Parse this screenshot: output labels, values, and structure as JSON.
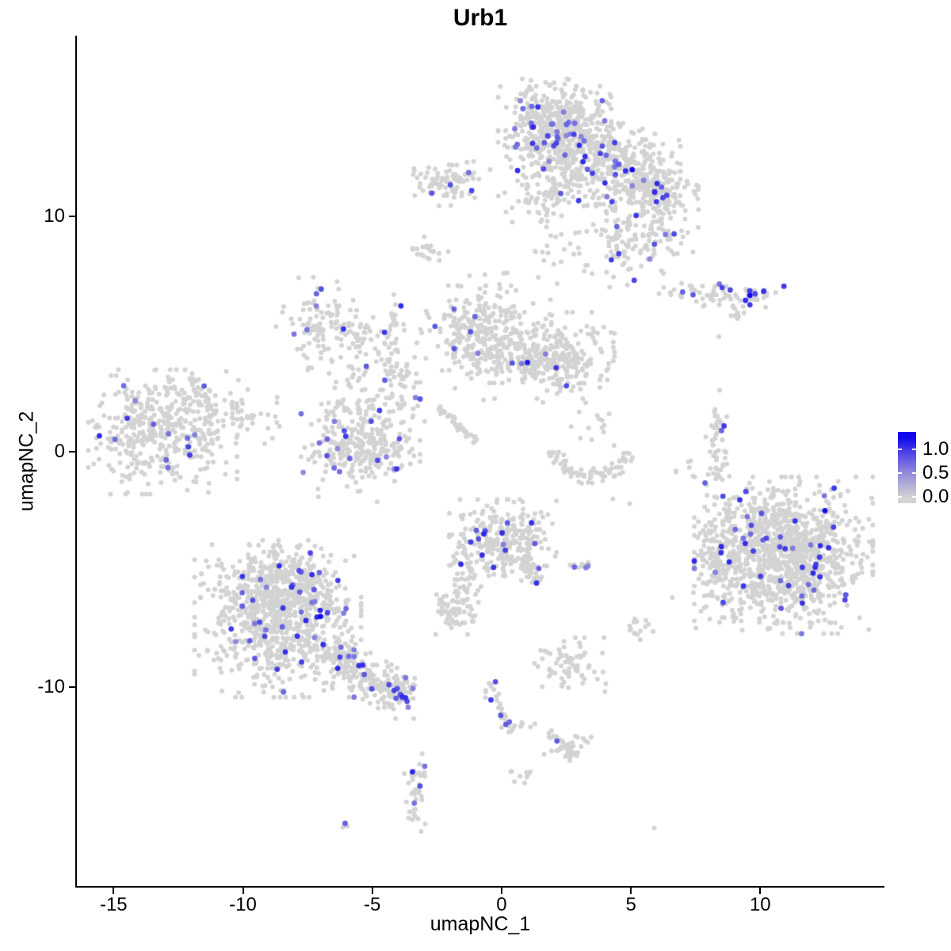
{
  "title": "Urb1",
  "axes": {
    "x": {
      "label": "umapNC_1",
      "ticks": [
        {
          "label": "-15",
          "value": -15
        },
        {
          "label": "-10",
          "value": -10
        },
        {
          "label": "-5",
          "value": -5
        },
        {
          "label": "0",
          "value": 0
        },
        {
          "label": "5",
          "value": 5
        },
        {
          "label": "10",
          "value": 10
        }
      ]
    },
    "y": {
      "label": "umapNC_2",
      "ticks": [
        {
          "label": "10",
          "value": 10
        },
        {
          "label": "0",
          "value": 0
        },
        {
          "label": "-10",
          "value": -10
        }
      ]
    }
  },
  "legend": {
    "labels": [
      {
        "text": "1.0",
        "value": 1.0
      },
      {
        "text": "0.5",
        "value": 0.5
      },
      {
        "text": "0.0",
        "value": 0.0
      }
    ],
    "low_color": "#D3D3D3",
    "high_color": "#1008EB"
  },
  "colors": {
    "base_point": "#D3D3D3",
    "high_point": "#1008EB",
    "axis": "#000000",
    "background": "#ffffff"
  },
  "seed": 20240611,
  "chart_data": {
    "type": "scatter",
    "title": "Urb1",
    "xlabel": "umapNC_1",
    "ylabel": "umapNC_2",
    "xlim": [
      -16.45,
      14.8
    ],
    "ylim": [
      -18.5,
      17.7
    ],
    "grid": false,
    "legend_position": "right",
    "point_radius_gray": 3.0,
    "point_radius_colored": 3.4,
    "clusters": [
      {
        "id": "top-main",
        "shape": "gauss",
        "cx": 2.05,
        "cy": 13.75,
        "sx": 0.95,
        "sy": 0.92,
        "n": 520,
        "cf": 0.06
      },
      {
        "id": "top-right",
        "shape": "gauss",
        "cx": 4.5,
        "cy": 12.25,
        "sx": 1.05,
        "sy": 0.75,
        "n": 300,
        "cf": 0.05
      },
      {
        "id": "top-right-tip",
        "shape": "gauss",
        "cx": 6.0,
        "cy": 11.2,
        "sx": 0.7,
        "sy": 0.5,
        "n": 150,
        "cf": 0.04
      },
      {
        "id": "top-lower-ext",
        "shape": "gauss",
        "cx": 5.3,
        "cy": 9.3,
        "sx": 1.0,
        "sy": 1.0,
        "n": 190,
        "cf": 0.035
      },
      {
        "id": "top-lower-lobe",
        "shape": "gauss",
        "cx": 1.7,
        "cy": 11.2,
        "sx": 0.85,
        "sy": 0.8,
        "n": 90,
        "cf": 0.03
      },
      {
        "id": "top-trail",
        "shape": "gauss",
        "cx": 2.0,
        "cy": 9.3,
        "sx": 0.5,
        "sy": 0.9,
        "n": 22,
        "cf": 0
      },
      {
        "id": "upper-left-small",
        "shape": "gauss",
        "cx": -2.0,
        "cy": 11.5,
        "sx": 0.7,
        "sy": 0.45,
        "n": 85,
        "cf": 0.04
      },
      {
        "id": "right-elongated",
        "shape": "gauss",
        "cx": 8.5,
        "cy": 6.7,
        "sx": 1.05,
        "sy": 0.24,
        "n": 72,
        "cf": 0.09
      },
      {
        "id": "right-elongated-diag",
        "shape": "line",
        "x0": 8.75,
        "y0": 6.15,
        "x1": 9.55,
        "y1": 5.6,
        "th": 0.12,
        "n": 11,
        "cf": 0.09
      },
      {
        "id": "tiny-blob-upper",
        "shape": "gauss",
        "cx": -2.75,
        "cy": 8.55,
        "sx": 0.3,
        "sy": 0.26,
        "n": 20,
        "cf": 0
      },
      {
        "id": "midleft-a",
        "shape": "gauss",
        "cx": -7.0,
        "cy": 5.4,
        "sx": 0.75,
        "sy": 0.9,
        "n": 100,
        "cf": 0.09
      },
      {
        "id": "midleft-fil",
        "shape": "gauss",
        "cx": -5.6,
        "cy": 4.6,
        "sx": 0.6,
        "sy": 0.75,
        "n": 45,
        "cf": 0.04
      },
      {
        "id": "mid-vert-strand",
        "shape": "gauss",
        "cx": -4.2,
        "cy": 5.0,
        "sx": 0.2,
        "sy": 0.85,
        "n": 28,
        "cf": 0.08
      },
      {
        "id": "mid-strand-down",
        "shape": "gauss",
        "cx": -3.9,
        "cy": 2.9,
        "sx": 0.55,
        "sy": 1.0,
        "n": 55,
        "cf": 0.02
      },
      {
        "id": "cluster-b",
        "shape": "gauss",
        "cx": -5.45,
        "cy": 0.75,
        "sx": 1.0,
        "sy": 1.25,
        "n": 230,
        "cf": 0.05
      },
      {
        "id": "cluster-b-low",
        "shape": "gauss",
        "cx": -5.6,
        "cy": -0.1,
        "sx": 0.9,
        "sy": 0.5,
        "n": 110,
        "cf": 0.05
      },
      {
        "id": "left-big",
        "shape": "gauss",
        "cx": -13.1,
        "cy": 0.85,
        "sx": 1.25,
        "sy": 1.15,
        "n": 420,
        "cf": 0.04
      },
      {
        "id": "left-big-tail",
        "shape": "gauss",
        "cx": -10.6,
        "cy": 1.5,
        "sx": 1.0,
        "sy": 0.5,
        "n": 65,
        "cf": 0.015
      },
      {
        "id": "left-big-top",
        "shape": "gauss",
        "cx": -11.9,
        "cy": 2.5,
        "sx": 0.85,
        "sy": 0.4,
        "n": 26,
        "cf": 0.05
      },
      {
        "id": "central-fan",
        "shape": "gauss",
        "cx": -0.85,
        "cy": 5.0,
        "sx": 0.9,
        "sy": 0.9,
        "n": 290,
        "cf": 0.012
      },
      {
        "id": "central-bridge",
        "shape": "line",
        "x0": 0.2,
        "y0": 3.7,
        "x1": 3.0,
        "y1": 4.0,
        "th": 0.25,
        "n": 65,
        "cf": 0.03
      },
      {
        "id": "cluster-c",
        "shape": "gauss",
        "cx": 1.95,
        "cy": 4.1,
        "sx": 1.05,
        "sy": 0.8,
        "n": 250,
        "cf": 0.012
      },
      {
        "id": "central-sparse-top",
        "shape": "gauss",
        "cx": 0.6,
        "cy": 6.6,
        "sx": 0.8,
        "sy": 0.8,
        "n": 14,
        "cf": 0
      },
      {
        "id": "diag-streak",
        "shape": "line",
        "x0": -2.45,
        "y0": 1.9,
        "x1": -1.0,
        "y1": 0.45,
        "th": 0.07,
        "n": 42,
        "cf": 0
      },
      {
        "id": "smile-arc",
        "shape": "arc",
        "cx": 3.45,
        "cy": 0.1,
        "rx": 1.35,
        "ry": 1.15,
        "a0": 185,
        "a1": 355,
        "jit": 0.13,
        "n": 80,
        "cf": 0
      },
      {
        "id": "smile-sparse",
        "shape": "gauss",
        "cx": 3.3,
        "cy": 1.0,
        "sx": 0.6,
        "sy": 0.55,
        "n": 13,
        "cf": 0
      },
      {
        "id": "right-strand",
        "shape": "gauss",
        "cx": 8.35,
        "cy": 0.2,
        "sx": 0.2,
        "sy": 1.05,
        "n": 50,
        "cf": 0.02
      },
      {
        "id": "bottomright-big",
        "shape": "gauss",
        "cx": 10.9,
        "cy": -4.4,
        "sx": 1.5,
        "sy": 1.45,
        "n": 1150,
        "cf": 0.042
      },
      {
        "id": "bottomright-edge",
        "shape": "gauss",
        "cx": 8.45,
        "cy": -4.3,
        "sx": 0.45,
        "sy": 1.2,
        "n": 85,
        "cf": 0.06
      },
      {
        "id": "bottomright-above",
        "shape": "gauss",
        "cx": 7.3,
        "cy": -0.8,
        "sx": 0.3,
        "sy": 0.3,
        "n": 6,
        "cf": 0
      },
      {
        "id": "center-bottom-d",
        "shape": "gauss",
        "cx": 0.05,
        "cy": -3.75,
        "sx": 0.9,
        "sy": 0.75,
        "n": 290,
        "cf": 0.03
      },
      {
        "id": "d-tail",
        "shape": "line",
        "x0": 0.75,
        "y0": -4.5,
        "x1": 1.35,
        "y1": -5.6,
        "th": 0.13,
        "n": 35,
        "cf": 0.05
      },
      {
        "id": "d-strand-right",
        "shape": "gauss",
        "cx": 2.9,
        "cy": -4.85,
        "sx": 0.3,
        "sy": 0.1,
        "n": 12,
        "cf": 0.17
      },
      {
        "id": "d-left-strand",
        "shape": "gauss",
        "cx": -1.3,
        "cy": -5.9,
        "sx": 0.22,
        "sy": 0.95,
        "n": 40,
        "cf": 0
      },
      {
        "id": "d-left-blob",
        "shape": "gauss",
        "cx": -1.9,
        "cy": -6.8,
        "sx": 0.38,
        "sy": 0.42,
        "n": 55,
        "cf": 0
      },
      {
        "id": "bottomleft-big",
        "shape": "gauss",
        "cx": -8.65,
        "cy": -7.1,
        "sx": 1.4,
        "sy": 1.45,
        "n": 780,
        "cf": 0.05
      },
      {
        "id": "bottomleft-top",
        "shape": "gauss",
        "cx": -8.2,
        "cy": -5.7,
        "sx": 0.95,
        "sy": 0.75,
        "n": 240,
        "cf": 0.06
      },
      {
        "id": "bottomleft-tail",
        "shape": "line",
        "x0": -6.8,
        "y0": -8.5,
        "x1": -3.7,
        "y1": -10.5,
        "th": 0.4,
        "n": 230,
        "cf": 0.06
      },
      {
        "id": "tail-end-dense",
        "shape": "gauss",
        "cx": -3.95,
        "cy": -10.25,
        "sx": 0.28,
        "sy": 0.28,
        "n": 26,
        "cf": 0.3
      },
      {
        "id": "small-bc",
        "shape": "gauss",
        "cx": 2.65,
        "cy": -9.05,
        "sx": 0.6,
        "sy": 0.5,
        "n": 70,
        "cf": 0.04
      },
      {
        "id": "small-blob-right",
        "shape": "gauss",
        "cx": 5.3,
        "cy": -7.3,
        "sx": 0.25,
        "sy": 0.3,
        "n": 16,
        "cf": 0
      },
      {
        "id": "diag-strand-bottom",
        "shape": "line",
        "x0": -0.55,
        "y0": -9.8,
        "x1": 0.35,
        "y1": -11.9,
        "th": 0.14,
        "n": 34,
        "cf": 0.1
      },
      {
        "id": "dots-row",
        "shape": "gauss",
        "cx": 0.8,
        "cy": -11.6,
        "sx": 0.35,
        "sy": 0.08,
        "n": 7,
        "cf": 0
      },
      {
        "id": "blob-tail-bottom",
        "shape": "gauss",
        "cx": 2.6,
        "cy": -12.55,
        "sx": 0.45,
        "sy": 0.3,
        "n": 42,
        "cf": 0
      },
      {
        "id": "blob-tail-line",
        "shape": "line",
        "x0": 1.75,
        "y0": -11.95,
        "x1": 2.35,
        "y1": -12.35,
        "th": 0.08,
        "n": 8,
        "cf": 0.13
      },
      {
        "id": "sinuous-strand",
        "shape": "gauss",
        "cx": -3.3,
        "cy": -14.3,
        "sx": 0.2,
        "sy": 0.8,
        "n": 40,
        "cf": 0.1
      },
      {
        "id": "tiny-blob-bottom",
        "shape": "gauss",
        "cx": 0.78,
        "cy": -13.75,
        "sx": 0.2,
        "sy": 0.2,
        "n": 9,
        "cf": 0
      },
      {
        "id": "tiny-pair",
        "shape": "gauss",
        "cx": -5.95,
        "cy": -15.9,
        "sx": 0.18,
        "sy": 0.1,
        "n": 3,
        "cf": 0
      }
    ],
    "singles_gray": [
      [
        -1.8,
        2.7
      ],
      [
        -0.7,
        2.2
      ],
      [
        1.6,
        2.1
      ],
      [
        2.7,
        2.6
      ],
      [
        3.0,
        1.7
      ],
      [
        8.4,
        4.9
      ],
      [
        4.3,
        -2.0
      ],
      [
        4.95,
        -2.2
      ],
      [
        6.6,
        -6.2
      ],
      [
        -4.1,
        -11.35
      ],
      [
        -3.4,
        -11.35
      ],
      [
        5.9,
        -16.0
      ]
    ],
    "highlight_points": [
      {
        "x": 5.05,
        "y": 12.0,
        "v": 1.0
      },
      {
        "x": 9.6,
        "y": 6.65,
        "v": 1.0
      },
      {
        "x": 12.5,
        "y": -2.5,
        "v": 1.0
      },
      {
        "x": -7.0,
        "y": -7.0,
        "v": 1.0
      },
      {
        "x": 1.0,
        "y": 3.8,
        "v": 0.92
      },
      {
        "x": -3.85,
        "y": -10.4,
        "v": 0.8
      },
      {
        "x": -4.15,
        "y": -10.15,
        "v": 0.72
      },
      {
        "x": 1.35,
        "y": -5.58,
        "v": 0.8
      },
      {
        "x": 8.6,
        "y": 1.1,
        "v": 0.75
      },
      {
        "x": 8.5,
        "y": 0.9,
        "v": 0.55
      },
      {
        "x": 2.14,
        "y": -12.3,
        "v": 0.6
      },
      {
        "x": -6.05,
        "y": -15.8,
        "v": 0.55
      },
      {
        "x": 7.0,
        "y": 6.8,
        "v": 0.55
      },
      {
        "x": 9.8,
        "y": 6.72,
        "v": 0.7
      },
      {
        "x": -2.7,
        "y": 11.0,
        "v": 0.6
      },
      {
        "x": -11.5,
        "y": 2.8,
        "v": 0.6
      }
    ]
  }
}
